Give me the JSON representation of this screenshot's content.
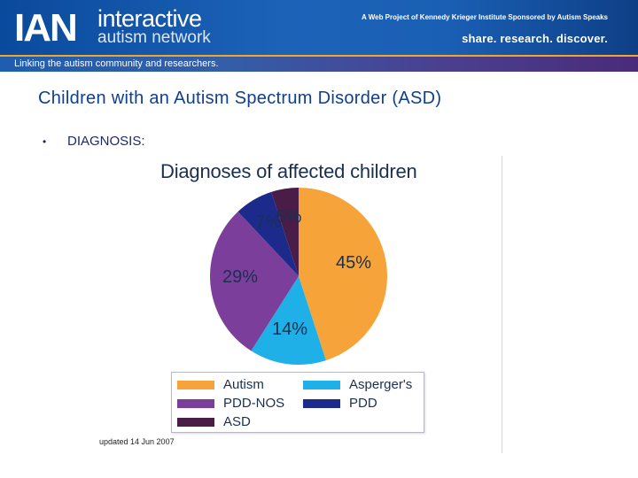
{
  "header": {
    "logo": "IAN",
    "brand_line1": "interactive",
    "brand_line2": "autism network",
    "top_right": "A Web Project of Kennedy Krieger Institute  Sponsored by Autism Speaks",
    "tagline": "share. research. discover.",
    "band_text": "Linking the autism community and researchers."
  },
  "slide": {
    "title": "Children with an Autism Spectrum Disorder (ASD)",
    "bullet": "•",
    "bullet_text": "DIAGNOSIS:",
    "updated": "updated 14 Jun 2007"
  },
  "chart_data": {
    "type": "pie",
    "title": "Diagnoses of affected children",
    "slices": [
      {
        "name": "Autism",
        "value": 45,
        "label": "45%",
        "color": "#f6a43a"
      },
      {
        "name": "Asperger's",
        "value": 14,
        "label": "14%",
        "color": "#1eb0e6"
      },
      {
        "name": "PDD-NOS",
        "value": 29,
        "label": "29%",
        "color": "#7b3f9b"
      },
      {
        "name": "PDD",
        "value": 7,
        "label": "7%",
        "color": "#1c2a8c"
      },
      {
        "name": "ASD",
        "value": 5,
        "label": "5%",
        "color": "#4a1c48"
      }
    ],
    "legend": [
      {
        "name": "Autism",
        "color": "#f6a43a"
      },
      {
        "name": "Asperger's",
        "color": "#1eb0e6"
      },
      {
        "name": "PDD-NOS",
        "color": "#7b3f9b"
      },
      {
        "name": "PDD",
        "color": "#1c2a8c"
      },
      {
        "name": "ASD",
        "color": "#4a1c48"
      }
    ],
    "legend_position": "bottom"
  }
}
